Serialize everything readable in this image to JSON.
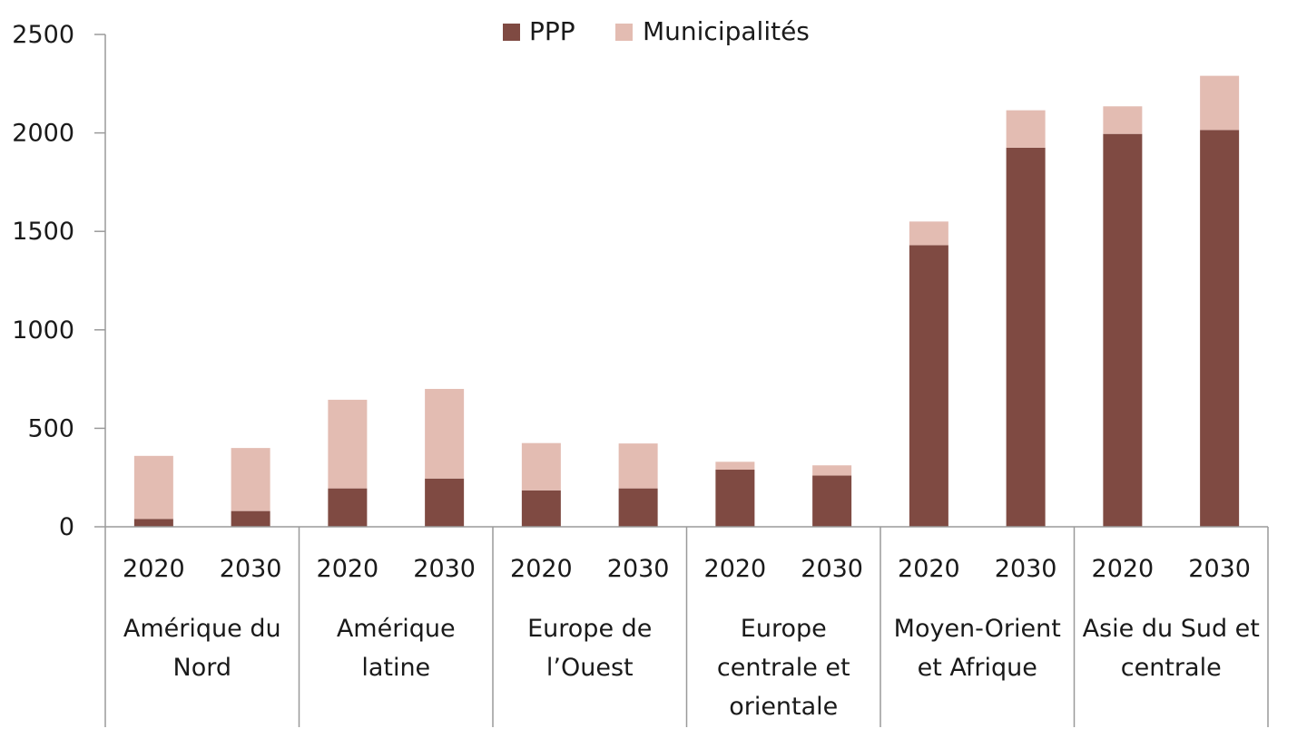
{
  "chart_data": {
    "type": "bar",
    "stacked": true,
    "title": "",
    "xlabel": "",
    "ylabel": "",
    "ylim": [
      0,
      2500
    ],
    "yticks": [
      0,
      500,
      1000,
      1500,
      2000,
      2500
    ],
    "legend_position": "top-center",
    "groups": [
      {
        "label_lines": [
          "Amérique du",
          "Nord"
        ]
      },
      {
        "label_lines": [
          "Amérique",
          "latine"
        ]
      },
      {
        "label_lines": [
          "Europe de",
          "l’Ouest"
        ]
      },
      {
        "label_lines": [
          "Europe",
          "centrale et",
          "orientale"
        ]
      },
      {
        "label_lines": [
          "Moyen-Orient",
          "et Afrique"
        ]
      },
      {
        "label_lines": [
          "Asie du Sud et",
          "centrale"
        ]
      }
    ],
    "years": [
      "2020",
      "2030"
    ],
    "series": [
      {
        "name": "PPP",
        "color": "#7f4a42",
        "values": [
          40,
          80,
          195,
          245,
          185,
          195,
          290,
          260,
          1430,
          1925,
          1995,
          2015
        ]
      },
      {
        "name": "Municipalités",
        "color": "#e3bcb2",
        "values": [
          320,
          320,
          450,
          455,
          240,
          228,
          40,
          52,
          120,
          190,
          140,
          275
        ]
      }
    ]
  }
}
